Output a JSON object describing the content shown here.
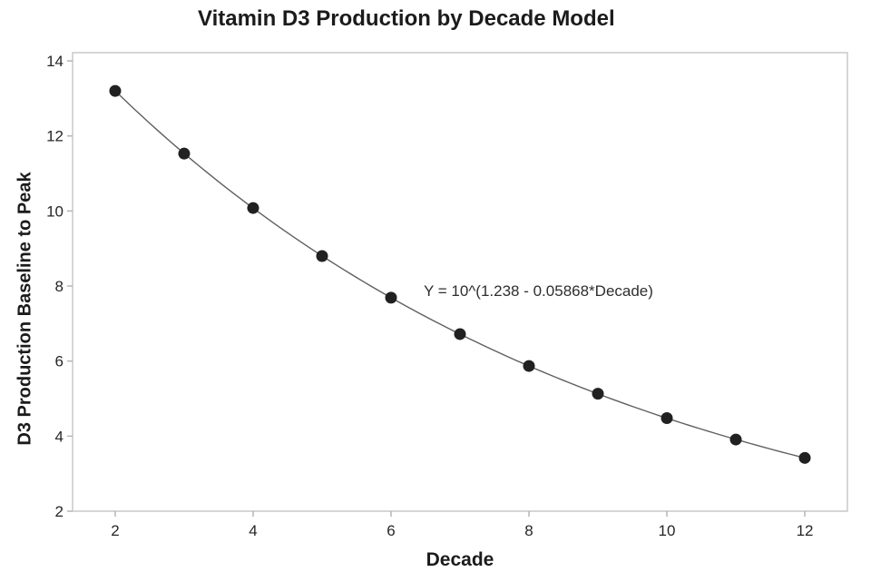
{
  "chart_data": {
    "type": "line",
    "title": "Vitamin D3 Production by Decade Model",
    "xlabel": "Decade",
    "ylabel": "D3 Production Baseline to Peak",
    "annotation": "Y = 10^(1.238 - 0.05868*Decade)",
    "x": [
      2,
      3,
      4,
      5,
      6,
      7,
      8,
      9,
      10,
      11,
      12
    ],
    "y": [
      13.2,
      11.53,
      10.08,
      8.8,
      7.69,
      6.72,
      5.87,
      5.13,
      4.48,
      3.91,
      3.42
    ],
    "equation": {
      "form": "Y = 10^(a + b*Decade)",
      "a": 1.238,
      "b": -0.05868
    },
    "xticks": [
      2,
      4,
      6,
      8,
      10,
      12
    ],
    "yticks": [
      2,
      4,
      6,
      8,
      10,
      12,
      14
    ],
    "xlim": [
      1.382,
      12.618
    ],
    "ylim": [
      2,
      14.22
    ],
    "grid": false,
    "legend": "none",
    "marker": "filled-circle",
    "colors": {
      "background": "#ffffff",
      "text": "#1b1b1b",
      "tick_label": "#262626",
      "frame": "#c8c8c8",
      "tick": "#b5b5b5",
      "line": "#5f5f5f",
      "marker_fill": "#212121",
      "annotation_text": "#2e2e2e"
    }
  }
}
